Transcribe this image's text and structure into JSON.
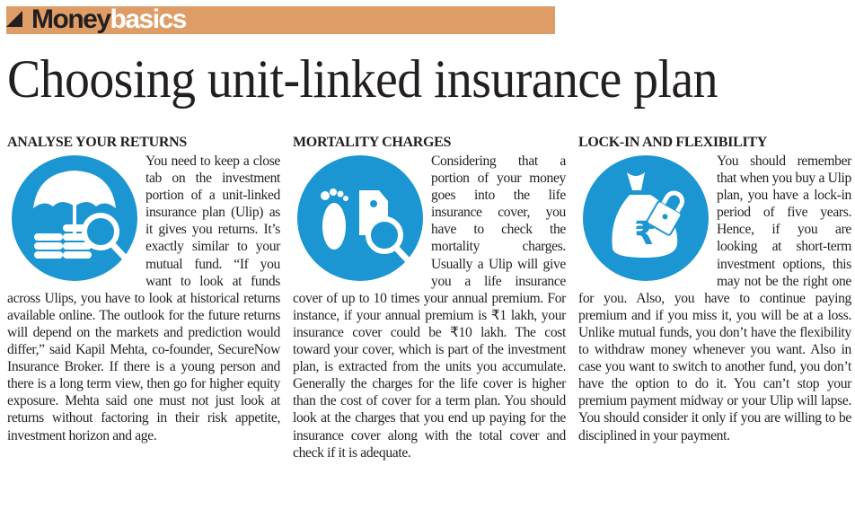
{
  "header": {
    "brand_primary": "Money",
    "brand_secondary": "basics",
    "banner_color": "#de9d66"
  },
  "title": "Choosing unit-linked insurance plan",
  "accent_color": "#1b96d3",
  "columns": [
    {
      "heading": "ANALYSE YOUR RETURNS",
      "icon": "umbrella-coins-magnifier-icon",
      "text": "You need to keep a close tab on the investment portion of a unit-linked insurance plan (Ulip) as it gives you returns. It’s exactly similar to your mutual fund. “If you want to look at funds across Ulips, you have to look at historical returns available online. The outlook for the future returns will depend on the markets and prediction would differ,” said Kapil Mehta, co-founder, SecureNow Insurance Broker. If there is a young person and there is a long term view, then go for higher equity exposure. Mehta said one must not just look at returns without factoring in their risk appetite, investment horizon and age."
    },
    {
      "heading": "MORTALITY CHARGES",
      "icon": "footprints-tag-magnifier-icon",
      "text": "Considering that a portion of your money goes into the life insurance cover, you have to check the mortality charges. Usually a Ulip will give you a life insurance cover of up to 10 times your annual premium. For instance, if your annual premium is ₹1 lakh, your insurance cover could be ₹10 lakh. The cost toward your cover, which is part of the investment plan, is extracted from the units you accumulate. Generally the charges for the life cover is higher than the cost of cover for a term plan. You should look at the charges that you end up paying for the insurance cover along with the total cover and check if it is adequate."
    },
    {
      "heading": "LOCK-IN AND FLEXIBILITY",
      "icon": "money-bag-lock-icon",
      "text": "You should remember that when you buy a Ulip plan, you have a lock-in period of five years. Hence, if you are looking at short-term investment options, this may not be the right one for you. Also, you have to continue paying premium and if you miss it, you will be at a loss. Unlike mutual funds, you don’t have the flexibility to withdraw money whenever you want. Also in case you want to switch to another fund, you don’t have the option to do it. You can’t stop your premium payment midway or your Ulip will lapse. You should consider it only if you are willing to be disciplined in your payment."
    }
  ]
}
